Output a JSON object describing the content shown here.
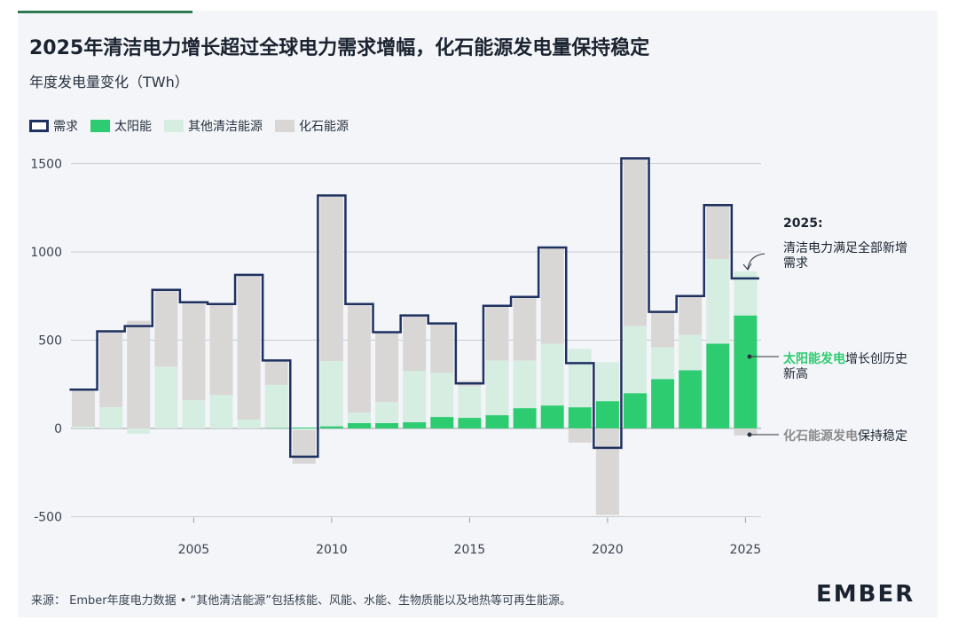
{
  "title": "2025年清洁电力增长超过全球电力需求增幅，化石能源发电量保持稳定",
  "subtitle": "年度发电量变化（TWh）",
  "legend": {
    "demand": "需求",
    "solar": "太阳能",
    "other_clean": "其他清洁能源",
    "fossil": "化石能源"
  },
  "colors": {
    "demand": "#1e3160",
    "solar": "#2ecc71",
    "other_clean": "#d6ede2",
    "fossil": "#d9d6d6",
    "grid": "#c8ccd2"
  },
  "annotations": {
    "head": "2025:",
    "demand_note": "清洁电力满足全部新增需求",
    "solar_bold": "太阳能发电",
    "solar_rest": "增长创历史新高",
    "fossil_bold": "化石能源发电",
    "fossil_rest": "保持稳定"
  },
  "footer": "来源： Ember年度电力数据 • “其他清洁能源”包括核能、风能、水能、生物质能以及地热等可再生能源。",
  "logo": "EMBER",
  "chart_data": {
    "type": "bar",
    "stacked": true,
    "ylim": [
      -500,
      1500
    ],
    "yticks": [
      -500,
      0,
      500,
      1000,
      1500
    ],
    "xticks": [
      2005,
      2010,
      2015,
      2020,
      2025
    ],
    "years": [
      2001,
      2002,
      2003,
      2004,
      2005,
      2006,
      2007,
      2008,
      2009,
      2010,
      2011,
      2012,
      2013,
      2014,
      2015,
      2016,
      2017,
      2018,
      2019,
      2020,
      2021,
      2022,
      2023,
      2024,
      2025
    ],
    "series": [
      {
        "name": "太阳能",
        "key": "solar",
        "values": [
          0,
          0,
          0,
          0,
          0,
          0,
          0,
          2,
          5,
          12,
          30,
          30,
          35,
          65,
          60,
          75,
          115,
          130,
          120,
          155,
          200,
          280,
          330,
          480,
          640
        ]
      },
      {
        "name": "其他清洁能源",
        "key": "other_clean",
        "values": [
          10,
          120,
          -30,
          350,
          160,
          190,
          50,
          245,
          -10,
          370,
          60,
          120,
          290,
          250,
          180,
          310,
          270,
          350,
          330,
          220,
          380,
          180,
          200,
          480,
          250
        ]
      },
      {
        "name": "化石能源",
        "key": "fossil",
        "values": [
          210,
          430,
          610,
          440,
          560,
          510,
          820,
          140,
          -190,
          940,
          610,
          400,
          320,
          280,
          30,
          310,
          360,
          540,
          -80,
          -490,
          950,
          200,
          220,
          300,
          -40
        ]
      }
    ],
    "demand": [
      220,
      550,
      580,
      785,
      715,
      705,
      870,
      385,
      -160,
      1320,
      705,
      545,
      640,
      595,
      255,
      695,
      745,
      1025,
      370,
      -110,
      1530,
      660,
      750,
      1265,
      850
    ]
  }
}
